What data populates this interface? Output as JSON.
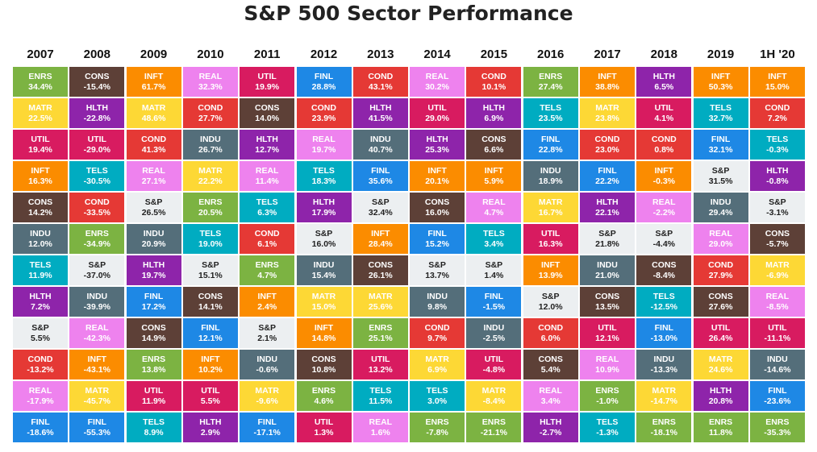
{
  "chart_data": {
    "type": "table",
    "title": "S&P 500 Sector Performance",
    "columns": [
      "2007",
      "2008",
      "2009",
      "2010",
      "2011",
      "2012",
      "2013",
      "2014",
      "2015",
      "2016",
      "2017",
      "2018",
      "2019",
      "1H '20"
    ],
    "colors": {
      "ENRS": "#7cb342",
      "CONS": "#5d4037",
      "INFT": "#fb8c00",
      "REAL": "#ee82ee",
      "UTIL": "#d81b60",
      "FINL": "#1e88e5",
      "COND": "#e53935",
      "HLTH": "#8e24aa",
      "MATR": "#fdd835",
      "TELS": "#00acc1",
      "INDU": "#546e7a",
      "S&P": "#eceff1"
    },
    "text_colors": {
      "S&P": "#222222",
      "default": "#ffffff"
    },
    "rows": [
      [
        [
          "ENRS",
          "34.4%"
        ],
        [
          "CONS",
          "-15.4%"
        ],
        [
          "INFT",
          "61.7%"
        ],
        [
          "REAL",
          "32.3%"
        ],
        [
          "UTIL",
          "19.9%"
        ],
        [
          "FINL",
          "28.8%"
        ],
        [
          "COND",
          "43.1%"
        ],
        [
          "REAL",
          "30.2%"
        ],
        [
          "COND",
          "10.1%"
        ],
        [
          "ENRS",
          "27.4%"
        ],
        [
          "INFT",
          "38.8%"
        ],
        [
          "HLTH",
          "6.5%"
        ],
        [
          "INFT",
          "50.3%"
        ],
        [
          "INFT",
          "15.0%"
        ]
      ],
      [
        [
          "MATR",
          "22.5%"
        ],
        [
          "HLTH",
          "-22.8%"
        ],
        [
          "MATR",
          "48.6%"
        ],
        [
          "COND",
          "27.7%"
        ],
        [
          "CONS",
          "14.0%"
        ],
        [
          "COND",
          "23.9%"
        ],
        [
          "HLTH",
          "41.5%"
        ],
        [
          "UTIL",
          "29.0%"
        ],
        [
          "HLTH",
          "6.9%"
        ],
        [
          "TELS",
          "23.5%"
        ],
        [
          "MATR",
          "23.8%"
        ],
        [
          "UTIL",
          "4.1%"
        ],
        [
          "TELS",
          "32.7%"
        ],
        [
          "COND",
          "7.2%"
        ]
      ],
      [
        [
          "UTIL",
          "19.4%"
        ],
        [
          "UTIL",
          "-29.0%"
        ],
        [
          "COND",
          "41.3%"
        ],
        [
          "INDU",
          "26.7%"
        ],
        [
          "HLTH",
          "12.7%"
        ],
        [
          "REAL",
          "19.7%"
        ],
        [
          "INDU",
          "40.7%"
        ],
        [
          "HLTH",
          "25.3%"
        ],
        [
          "CONS",
          "6.6%"
        ],
        [
          "FINL",
          "22.8%"
        ],
        [
          "COND",
          "23.0%"
        ],
        [
          "COND",
          "0.8%"
        ],
        [
          "FINL",
          "32.1%"
        ],
        [
          "TELS",
          "-0.3%"
        ]
      ],
      [
        [
          "INFT",
          "16.3%"
        ],
        [
          "TELS",
          "-30.5%"
        ],
        [
          "REAL",
          "27.1%"
        ],
        [
          "MATR",
          "22.2%"
        ],
        [
          "REAL",
          "11.4%"
        ],
        [
          "TELS",
          "18.3%"
        ],
        [
          "FINL",
          "35.6%"
        ],
        [
          "INFT",
          "20.1%"
        ],
        [
          "INFT",
          "5.9%"
        ],
        [
          "INDU",
          "18.9%"
        ],
        [
          "FINL",
          "22.2%"
        ],
        [
          "INFT",
          "-0.3%"
        ],
        [
          "S&P",
          "31.5%"
        ],
        [
          "HLTH",
          "-0.8%"
        ]
      ],
      [
        [
          "CONS",
          "14.2%"
        ],
        [
          "COND",
          "-33.5%"
        ],
        [
          "S&P",
          "26.5%"
        ],
        [
          "ENRS",
          "20.5%"
        ],
        [
          "TELS",
          "6.3%"
        ],
        [
          "HLTH",
          "17.9%"
        ],
        [
          "S&P",
          "32.4%"
        ],
        [
          "CONS",
          "16.0%"
        ],
        [
          "REAL",
          "4.7%"
        ],
        [
          "MATR",
          "16.7%"
        ],
        [
          "HLTH",
          "22.1%"
        ],
        [
          "REAL",
          "-2.2%"
        ],
        [
          "INDU",
          "29.4%"
        ],
        [
          "S&P",
          "-3.1%"
        ]
      ],
      [
        [
          "INDU",
          "12.0%"
        ],
        [
          "ENRS",
          "-34.9%"
        ],
        [
          "INDU",
          "20.9%"
        ],
        [
          "TELS",
          "19.0%"
        ],
        [
          "COND",
          "6.1%"
        ],
        [
          "S&P",
          "16.0%"
        ],
        [
          "INFT",
          "28.4%"
        ],
        [
          "FINL",
          "15.2%"
        ],
        [
          "TELS",
          "3.4%"
        ],
        [
          "UTIL",
          "16.3%"
        ],
        [
          "S&P",
          "21.8%"
        ],
        [
          "S&P",
          "-4.4%"
        ],
        [
          "REAL",
          "29.0%"
        ],
        [
          "CONS",
          "-5.7%"
        ]
      ],
      [
        [
          "TELS",
          "11.9%"
        ],
        [
          "S&P",
          "-37.0%"
        ],
        [
          "HLTH",
          "19.7%"
        ],
        [
          "S&P",
          "15.1%"
        ],
        [
          "ENRS",
          "4.7%"
        ],
        [
          "INDU",
          "15.4%"
        ],
        [
          "CONS",
          "26.1%"
        ],
        [
          "S&P",
          "13.7%"
        ],
        [
          "S&P",
          "1.4%"
        ],
        [
          "INFT",
          "13.9%"
        ],
        [
          "INDU",
          "21.0%"
        ],
        [
          "CONS",
          "-8.4%"
        ],
        [
          "COND",
          "27.9%"
        ],
        [
          "MATR",
          "-6.9%"
        ]
      ],
      [
        [
          "HLTH",
          "7.2%"
        ],
        [
          "INDU",
          "-39.9%"
        ],
        [
          "FINL",
          "17.2%"
        ],
        [
          "CONS",
          "14.1%"
        ],
        [
          "INFT",
          "2.4%"
        ],
        [
          "MATR",
          "15.0%"
        ],
        [
          "MATR",
          "25.6%"
        ],
        [
          "INDU",
          "9.8%"
        ],
        [
          "FINL",
          "-1.5%"
        ],
        [
          "S&P",
          "12.0%"
        ],
        [
          "CONS",
          "13.5%"
        ],
        [
          "TELS",
          "-12.5%"
        ],
        [
          "CONS",
          "27.6%"
        ],
        [
          "REAL",
          "-8.5%"
        ]
      ],
      [
        [
          "S&P",
          "5.5%"
        ],
        [
          "REAL",
          "-42.3%"
        ],
        [
          "CONS",
          "14.9%"
        ],
        [
          "FINL",
          "12.1%"
        ],
        [
          "S&P",
          "2.1%"
        ],
        [
          "INFT",
          "14.8%"
        ],
        [
          "ENRS",
          "25.1%"
        ],
        [
          "COND",
          "9.7%"
        ],
        [
          "INDU",
          "-2.5%"
        ],
        [
          "COND",
          "6.0%"
        ],
        [
          "UTIL",
          "12.1%"
        ],
        [
          "FINL",
          "-13.0%"
        ],
        [
          "UTIL",
          "26.4%"
        ],
        [
          "UTIL",
          "-11.1%"
        ]
      ],
      [
        [
          "COND",
          "-13.2%"
        ],
        [
          "INFT",
          "-43.1%"
        ],
        [
          "ENRS",
          "13.8%"
        ],
        [
          "INFT",
          "10.2%"
        ],
        [
          "INDU",
          "-0.6%"
        ],
        [
          "CONS",
          "10.8%"
        ],
        [
          "UTIL",
          "13.2%"
        ],
        [
          "MATR",
          "6.9%"
        ],
        [
          "UTIL",
          "-4.8%"
        ],
        [
          "CONS",
          "5.4%"
        ],
        [
          "REAL",
          "10.9%"
        ],
        [
          "INDU",
          "-13.3%"
        ],
        [
          "MATR",
          "24.6%"
        ],
        [
          "INDU",
          "-14.6%"
        ]
      ],
      [
        [
          "REAL",
          "-17.9%"
        ],
        [
          "MATR",
          "-45.7%"
        ],
        [
          "UTIL",
          "11.9%"
        ],
        [
          "UTIL",
          "5.5%"
        ],
        [
          "MATR",
          "-9.6%"
        ],
        [
          "ENRS",
          "4.6%"
        ],
        [
          "TELS",
          "11.5%"
        ],
        [
          "TELS",
          "3.0%"
        ],
        [
          "MATR",
          "-8.4%"
        ],
        [
          "REAL",
          "3.4%"
        ],
        [
          "ENRS",
          "-1.0%"
        ],
        [
          "MATR",
          "-14.7%"
        ],
        [
          "HLTH",
          "20.8%"
        ],
        [
          "FINL",
          "-23.6%"
        ]
      ],
      [
        [
          "FINL",
          "-18.6%"
        ],
        [
          "FINL",
          "-55.3%"
        ],
        [
          "TELS",
          "8.9%"
        ],
        [
          "HLTH",
          "2.9%"
        ],
        [
          "FINL",
          "-17.1%"
        ],
        [
          "UTIL",
          "1.3%"
        ],
        [
          "REAL",
          "1.6%"
        ],
        [
          "ENRS",
          "-7.8%"
        ],
        [
          "ENRS",
          "-21.1%"
        ],
        [
          "HLTH",
          "-2.7%"
        ],
        [
          "TELS",
          "-1.3%"
        ],
        [
          "ENRS",
          "-18.1%"
        ],
        [
          "ENRS",
          "11.8%"
        ],
        [
          "ENRS",
          "-35.3%"
        ]
      ]
    ]
  }
}
